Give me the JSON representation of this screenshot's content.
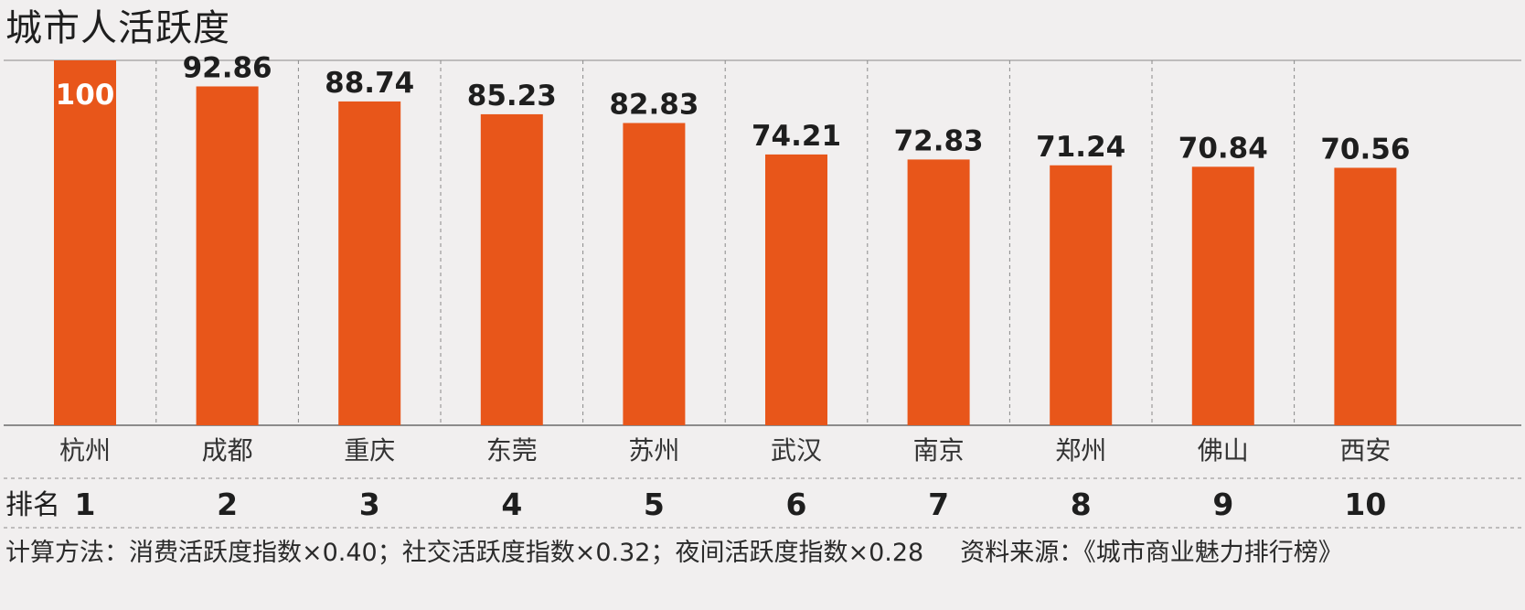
{
  "chart_data": {
    "type": "bar",
    "title": "城市人活跃度",
    "categories": [
      "杭州",
      "成都",
      "重庆",
      "东莞",
      "苏州",
      "武汉",
      "南京",
      "郑州",
      "佛山",
      "西安"
    ],
    "values": [
      100,
      92.86,
      88.74,
      85.23,
      82.83,
      74.21,
      72.83,
      71.24,
      70.84,
      70.56
    ],
    "value_labels": [
      "100",
      "92.86",
      "88.74",
      "85.23",
      "82.83",
      "74.21",
      "72.83",
      "71.24",
      "70.84",
      "70.56"
    ],
    "ranks": [
      "1",
      "2",
      "3",
      "4",
      "5",
      "6",
      "7",
      "8",
      "9",
      "10"
    ],
    "rank_label": "排名",
    "ylim": [
      0,
      100
    ],
    "grid": false,
    "bar_color": "#e8561a"
  },
  "footnote": {
    "method": "计算方法：消费活跃度指数×0.40；社交活跃度指数×0.32；夜间活跃度指数×0.28",
    "source": "资料来源：《城市商业魅力排行榜》"
  },
  "colors": {
    "background": "#f1efef",
    "bar": "#e8561a",
    "text": "#1e1e1e",
    "divider": "#8a8a8a"
  }
}
